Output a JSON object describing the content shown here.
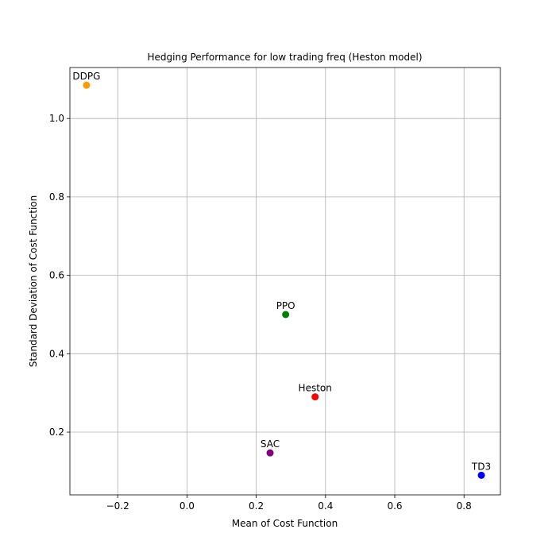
{
  "chart_data": {
    "type": "scatter",
    "title": "Hedging Performance for low trading freq (Heston model)",
    "xlabel": "Mean of Cost Function",
    "ylabel": "Standard Deviation of Cost Function",
    "xlim": [
      -0.338,
      0.905
    ],
    "ylim": [
      0.04,
      1.13
    ],
    "xticks": [
      -0.2,
      0.0,
      0.2,
      0.4,
      0.6,
      0.8
    ],
    "xtick_labels": [
      "−0.2",
      "0.0",
      "0.2",
      "0.4",
      "0.6",
      "0.8"
    ],
    "yticks": [
      0.2,
      0.4,
      0.6,
      0.8,
      1.0
    ],
    "ytick_labels": [
      "0.2",
      "0.4",
      "0.6",
      "0.8",
      "1.0"
    ],
    "grid": true,
    "legend": "none",
    "points": [
      {
        "label": "DDPG",
        "x": -0.29,
        "y": 1.085,
        "color": "#ff9900"
      },
      {
        "label": "PPO",
        "x": 0.285,
        "y": 0.5,
        "color": "#008000"
      },
      {
        "label": "Heston",
        "x": 0.37,
        "y": 0.29,
        "color": "#ff0000"
      },
      {
        "label": "SAC",
        "x": 0.24,
        "y": 0.147,
        "color": "#800080"
      },
      {
        "label": "TD3",
        "x": 0.85,
        "y": 0.09,
        "color": "#0000ff"
      }
    ]
  }
}
